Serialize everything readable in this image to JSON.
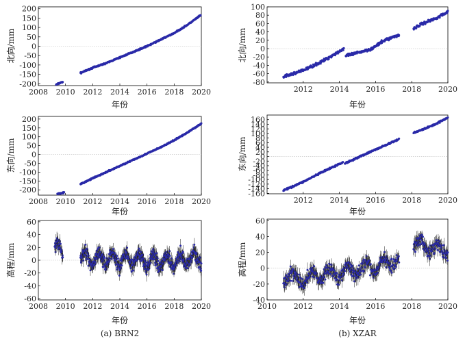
{
  "figure": {
    "caption_left": "(a) BRN2",
    "caption_right": "(b) XZAR",
    "colors": {
      "series": "#2a2aa8",
      "errorbar": "#222222",
      "zero": "#bbbbbb",
      "axis": "#000000"
    }
  },
  "chart_data": [
    {
      "id": "brn2-north",
      "type": "scatter",
      "station": "BRN2",
      "component": "north",
      "title": "",
      "xlabel": "年份",
      "ylabel": "北向/mm",
      "xlim": [
        2008,
        2020
      ],
      "ylim": [
        -210,
        210
      ],
      "xticks": [
        2008,
        2010,
        2012,
        2014,
        2016,
        2018,
        2020
      ],
      "yticks": [
        -200,
        -150,
        -100,
        -50,
        0,
        50,
        100,
        150,
        200
      ],
      "series": [
        {
          "name": "seg1",
          "x": [
            2009.3,
            2009.8
          ],
          "y": [
            -205,
            -190
          ]
        },
        {
          "name": "seg2",
          "x": [
            2011.1,
            2012,
            2013,
            2014,
            2015,
            2016,
            2017,
            2018,
            2019,
            2019.95
          ],
          "y": [
            -143,
            -115,
            -90,
            -60,
            -30,
            0,
            35,
            70,
            115,
            165
          ]
        }
      ],
      "noise": 3
    },
    {
      "id": "xzar-north",
      "type": "scatter",
      "station": "XZAR",
      "component": "north",
      "title": "",
      "xlabel": "年份",
      "ylabel": "北向/mm",
      "xlim": [
        2010,
        2020
      ],
      "ylim": [
        -82,
        100
      ],
      "xticks": [
        2012,
        2014,
        2016,
        2018,
        2020
      ],
      "yticks": [
        -80,
        -60,
        -40,
        -20,
        0,
        20,
        40,
        60,
        80,
        100
      ],
      "series": [
        {
          "name": "seg1",
          "x": [
            2010.9,
            2012,
            2013,
            2014.25
          ],
          "y": [
            -68,
            -52,
            -32,
            0
          ]
        },
        {
          "name": "seg2",
          "x": [
            2014.35,
            2015,
            2015.8,
            2016.5,
            2017.3
          ],
          "y": [
            -18,
            -10,
            0,
            20,
            33
          ]
        },
        {
          "name": "seg3",
          "x": [
            2018.1,
            2018.6,
            2019.3,
            2020
          ],
          "y": [
            48,
            60,
            72,
            88
          ]
        }
      ],
      "noise": 3
    },
    {
      "id": "brn2-east",
      "type": "scatter",
      "station": "BRN2",
      "component": "east",
      "title": "",
      "xlabel": "年份",
      "ylabel": "东向/mm",
      "xlim": [
        2008,
        2020
      ],
      "ylim": [
        -230,
        215
      ],
      "xticks": [
        2008,
        2010,
        2012,
        2014,
        2016,
        2018,
        2020
      ],
      "yticks": [
        -200,
        -150,
        -100,
        -50,
        0,
        50,
        100,
        150,
        200
      ],
      "series": [
        {
          "name": "seg1",
          "x": [
            2009.4,
            2009.9
          ],
          "y": [
            -222,
            -215
          ]
        },
        {
          "name": "seg2",
          "x": [
            2011.1,
            2012,
            2013,
            2014,
            2015,
            2016,
            2017,
            2018,
            2019,
            2020
          ],
          "y": [
            -168,
            -135,
            -100,
            -65,
            -30,
            5,
            40,
            80,
            125,
            175
          ]
        }
      ],
      "noise": 3
    },
    {
      "id": "xzar-east",
      "type": "scatter",
      "station": "XZAR",
      "component": "east",
      "title": "",
      "xlabel": "年份",
      "ylabel": "东向/mm",
      "xlim": [
        2010,
        2020
      ],
      "ylim": [
        -162,
        180
      ],
      "xticks": [
        2012,
        2014,
        2016,
        2018,
        2020
      ],
      "yticks": [
        -160,
        -140,
        -120,
        -100,
        -80,
        -60,
        -40,
        -20,
        0,
        20,
        40,
        60,
        80,
        100,
        120,
        140,
        160
      ],
      "series": [
        {
          "name": "seg1",
          "x": [
            2010.9,
            2012,
            2013,
            2014.2
          ],
          "y": [
            -148,
            -110,
            -70,
            -25
          ]
        },
        {
          "name": "seg2",
          "x": [
            2014.3,
            2015,
            2016,
            2017.3
          ],
          "y": [
            -30,
            -5,
            30,
            75
          ]
        },
        {
          "name": "seg3",
          "x": [
            2018.1,
            2018.7,
            2019.3,
            2020
          ],
          "y": [
            103,
            120,
            140,
            170
          ]
        }
      ],
      "noise": 3
    },
    {
      "id": "brn2-up",
      "type": "scatter",
      "station": "BRN2",
      "component": "up",
      "title": "",
      "xlabel": "年份",
      "ylabel": "高程/mm",
      "xlim": [
        2008,
        2020
      ],
      "ylim": [
        -62,
        62
      ],
      "xticks": [
        2008,
        2010,
        2012,
        2014,
        2016,
        2018,
        2020
      ],
      "yticks": [
        -60,
        -40,
        -20,
        0,
        20,
        40,
        60
      ],
      "series": [
        {
          "name": "seg1",
          "x": [
            2009.2,
            2009.5,
            2009.8
          ],
          "y": [
            20,
            15,
            10
          ]
        },
        {
          "name": "seg2",
          "x": [
            2011.1,
            2012,
            2013,
            2014,
            2015,
            2016,
            2017,
            2018,
            2019,
            2020
          ],
          "y": [
            5,
            2,
            3,
            0,
            1,
            -2,
            0,
            -1,
            2,
            3
          ]
        }
      ],
      "noise": 9,
      "seasonal": 10,
      "errorbar": 8
    },
    {
      "id": "xzar-up",
      "type": "scatter",
      "station": "XZAR",
      "component": "up",
      "title": "",
      "xlabel": "年份",
      "ylabel": "高程/mm",
      "xlim": [
        2010,
        2020
      ],
      "ylim": [
        -40,
        62
      ],
      "xticks": [
        2010,
        2012,
        2014,
        2016,
        2018,
        2020
      ],
      "yticks": [
        -40,
        -20,
        0,
        20,
        40,
        60
      ],
      "series": [
        {
          "name": "seg1",
          "x": [
            2010.9,
            2012,
            2013,
            2014,
            2015,
            2016,
            2017.3
          ],
          "y": [
            -12,
            -14,
            -8,
            -6,
            -2,
            2,
            12
          ]
        },
        {
          "name": "seg2",
          "x": [
            2018.1,
            2018.7,
            2019.3,
            2020
          ],
          "y": [
            28,
            30,
            24,
            22
          ]
        }
      ],
      "noise": 7,
      "seasonal": 7,
      "errorbar": 7
    }
  ]
}
